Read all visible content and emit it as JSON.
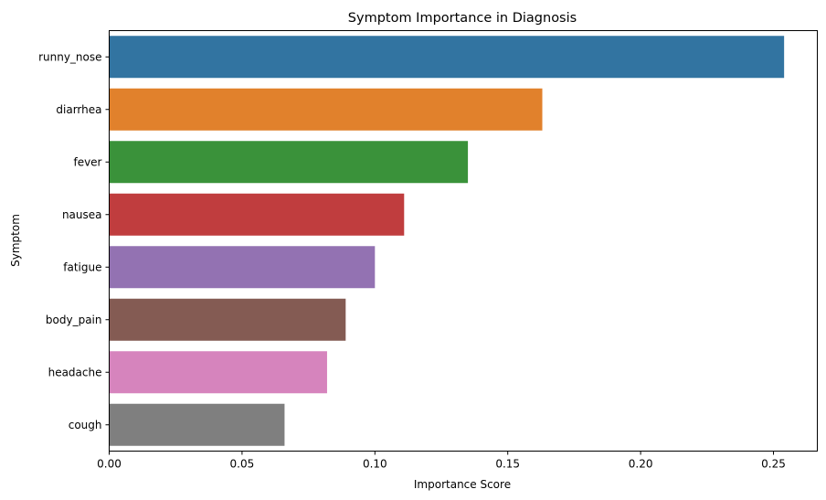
{
  "chart_data": {
    "type": "bar",
    "orientation": "horizontal",
    "title": "Symptom Importance in Diagnosis",
    "xlabel": "Importance Score",
    "ylabel": "Symptom",
    "xlim": [
      0,
      0.2665
    ],
    "xticks": [
      0.0,
      0.05,
      0.1,
      0.15,
      0.2,
      0.25
    ],
    "xtick_labels": [
      "0.00",
      "0.05",
      "0.10",
      "0.15",
      "0.20",
      "0.25"
    ],
    "categories": [
      "runny_nose",
      "diarrhea",
      "fever",
      "nausea",
      "fatigue",
      "body_pain",
      "headache",
      "cough"
    ],
    "values": [
      0.254,
      0.163,
      0.135,
      0.111,
      0.1,
      0.089,
      0.082,
      0.066
    ],
    "colors": [
      "#3274a1",
      "#e1812c",
      "#3a923a",
      "#c03d3e",
      "#9372b2",
      "#845b53",
      "#d684bd",
      "#7f7f7f"
    ],
    "grid": false,
    "legend": "none"
  }
}
